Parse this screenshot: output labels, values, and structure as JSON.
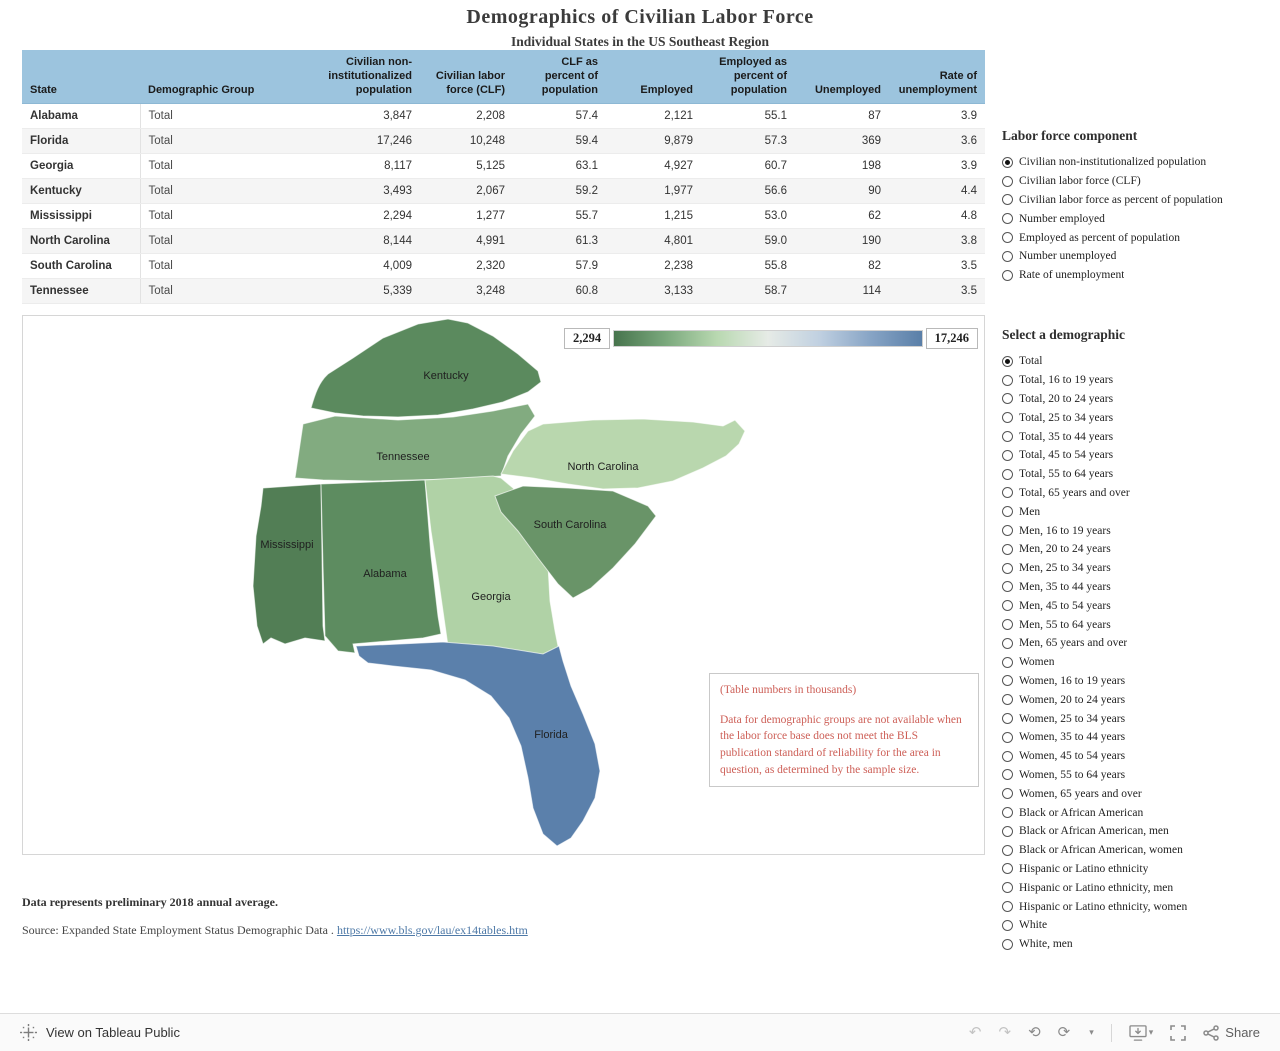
{
  "header": {
    "title": "Demographics of Civilian Labor Force",
    "subtitle": "Individual States in the US Southeast Region"
  },
  "table": {
    "columns": [
      "State",
      "Demographic Group",
      "Civilian non-institutionalized population",
      "Civilian labor force (CLF)",
      "CLF as percent of population",
      "Employed",
      "Employed as percent of population",
      "Unemployed",
      "Rate of unemployment"
    ],
    "rows": [
      {
        "state": "Alabama",
        "group": "Total",
        "values": [
          "3,847",
          "2,208",
          "57.4",
          "2,121",
          "55.1",
          "87",
          "3.9"
        ]
      },
      {
        "state": "Florida",
        "group": "Total",
        "values": [
          "17,246",
          "10,248",
          "59.4",
          "9,879",
          "57.3",
          "369",
          "3.6"
        ]
      },
      {
        "state": "Georgia",
        "group": "Total",
        "values": [
          "8,117",
          "5,125",
          "63.1",
          "4,927",
          "60.7",
          "198",
          "3.9"
        ]
      },
      {
        "state": "Kentucky",
        "group": "Total",
        "values": [
          "3,493",
          "2,067",
          "59.2",
          "1,977",
          "56.6",
          "90",
          "4.4"
        ]
      },
      {
        "state": "Mississippi",
        "group": "Total",
        "values": [
          "2,294",
          "1,277",
          "55.7",
          "1,215",
          "53.0",
          "62",
          "4.8"
        ]
      },
      {
        "state": "North Carolina",
        "group": "Total",
        "values": [
          "8,144",
          "4,991",
          "61.3",
          "4,801",
          "59.0",
          "190",
          "3.8"
        ]
      },
      {
        "state": "South Carolina",
        "group": "Total",
        "values": [
          "4,009",
          "2,320",
          "57.9",
          "2,238",
          "55.8",
          "82",
          "3.5"
        ]
      },
      {
        "state": "Tennessee",
        "group": "Total",
        "values": [
          "5,339",
          "3,248",
          "60.8",
          "3,133",
          "58.7",
          "114",
          "3.5"
        ]
      }
    ]
  },
  "map": {
    "legend_min": "2,294",
    "legend_max": "17,246",
    "legend_gradient": [
      "#47744d",
      "#7aa87c",
      "#b8d8b0",
      "#e6ebe6",
      "#c0d0e1",
      "#87a4c5",
      "#5a7fa8"
    ],
    "states": [
      {
        "name": "Kentucky",
        "color": "#5b8a5e"
      },
      {
        "name": "Tennessee",
        "color": "#82ab80"
      },
      {
        "name": "North Carolina",
        "color": "#b9d7ae"
      },
      {
        "name": "Mississippi",
        "color": "#527e55"
      },
      {
        "name": "Alabama",
        "color": "#5d8c60"
      },
      {
        "name": "Georgia",
        "color": "#b0d2a6"
      },
      {
        "name": "South Carolina",
        "color": "#699468"
      },
      {
        "name": "Florida",
        "color": "#5b80ab"
      }
    ]
  },
  "note": {
    "line1": "(Table numbers in thousands)",
    "line2": "Data for demographic groups are not available when the labor force base does not meet the BLS publication standard of reliability for the area in question, as determined by the sample size."
  },
  "panels": {
    "labor_force": {
      "title": "Labor force component",
      "selected": "Civilian non-institutionalized population",
      "options": [
        "Civilian non-institutionalized population",
        "Civilian labor force (CLF)",
        "Civilian labor force as percent of population",
        "Number employed",
        "Employed as percent of population",
        "Number unemployed",
        "Rate of unemployment"
      ]
    },
    "demographic": {
      "title": "Select a demographic",
      "selected": "Total",
      "options": [
        "Total",
        "Total, 16 to 19 years",
        "Total, 20 to 24 years",
        "Total, 25 to 34 years",
        "Total, 35 to 44 years",
        "Total, 45 to 54 years",
        "Total, 55 to 64 years",
        "Total, 65 years and over",
        "Men",
        "Men, 16 to 19 years",
        "Men, 20 to 24 years",
        "Men, 25 to 34 years",
        "Men, 35 to 44 years",
        "Men, 45 to 54 years",
        "Men, 55 to 64 years",
        "Men, 65 years and over",
        "Women",
        "Women, 16 to 19 years",
        "Women, 20 to 24 years",
        "Women, 25 to 34 years",
        "Women, 35 to 44 years",
        "Women, 45 to 54 years",
        "Women, 55 to 64 years",
        "Women, 65 years and over",
        "Black or African American",
        "Black or African American, men",
        "Black or African American, women",
        "Hispanic or Latino ethnicity",
        "Hispanic or Latino ethnicity, men",
        "Hispanic or Latino ethnicity, women",
        "White",
        "White, men"
      ]
    }
  },
  "footer": {
    "note": "Data represents preliminary 2018 annual average.",
    "source_prefix": "Source: Expanded State Employment Status Demographic Data . ",
    "source_link": "https://www.bls.gov/lau/ex14tables.htm"
  },
  "toolbar": {
    "view_label": "View on Tableau Public",
    "share_label": "Share"
  },
  "chart_data": {
    "type": "table",
    "title": "Demographics of Civilian Labor Force",
    "subtitle": "Individual States in the US Southeast Region",
    "columns": [
      "State",
      "Demographic Group",
      "Civilian non-institutionalized population",
      "Civilian labor force (CLF)",
      "CLF as percent of population",
      "Employed",
      "Employed as percent of population",
      "Unemployed",
      "Rate of unemployment"
    ],
    "rows": [
      [
        "Alabama",
        "Total",
        3847,
        2208,
        57.4,
        2121,
        55.1,
        87,
        3.9
      ],
      [
        "Florida",
        "Total",
        17246,
        10248,
        59.4,
        9879,
        57.3,
        369,
        3.6
      ],
      [
        "Georgia",
        "Total",
        8117,
        5125,
        63.1,
        4927,
        60.7,
        198,
        3.9
      ],
      [
        "Kentucky",
        "Total",
        3493,
        2067,
        59.2,
        1977,
        56.6,
        90,
        4.4
      ],
      [
        "Mississippi",
        "Total",
        2294,
        1277,
        55.7,
        1215,
        53.0,
        62,
        4.8
      ],
      [
        "North Carolina",
        "Total",
        8144,
        4991,
        61.3,
        4801,
        59.0,
        190,
        3.8
      ],
      [
        "South Carolina",
        "Total",
        4009,
        2320,
        57.9,
        2238,
        55.8,
        82,
        3.5
      ],
      [
        "Tennessee",
        "Total",
        5339,
        3248,
        60.8,
        3133,
        58.7,
        114,
        3.5
      ]
    ],
    "choropleth": {
      "measure": "Civilian non-institutionalized population (thousands)",
      "range": [
        2294,
        17246
      ],
      "values": {
        "Alabama": 3847,
        "Florida": 17246,
        "Georgia": 8117,
        "Kentucky": 3493,
        "Mississippi": 2294,
        "North Carolina": 8144,
        "South Carolina": 4009,
        "Tennessee": 5339
      }
    },
    "notes": [
      "Table numbers in thousands",
      "Data represents preliminary 2018 annual average."
    ]
  }
}
